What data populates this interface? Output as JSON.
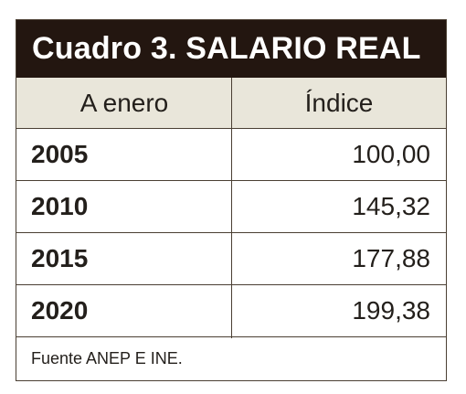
{
  "table": {
    "title": "Cuadro 3. SALARIO REAL",
    "columns": [
      "A enero",
      "Índice"
    ],
    "rows": [
      {
        "year": "2005",
        "index": "100,00"
      },
      {
        "year": "2010",
        "index": "145,32"
      },
      {
        "year": "2015",
        "index": "177,88"
      },
      {
        "year": "2020",
        "index": "199,38"
      }
    ],
    "source": "Fuente ANEP E INE."
  },
  "colors": {
    "title_background": "#231610",
    "title_text": "#ffffff",
    "header_background": "#e9e6da",
    "border": "#4a3f33"
  }
}
